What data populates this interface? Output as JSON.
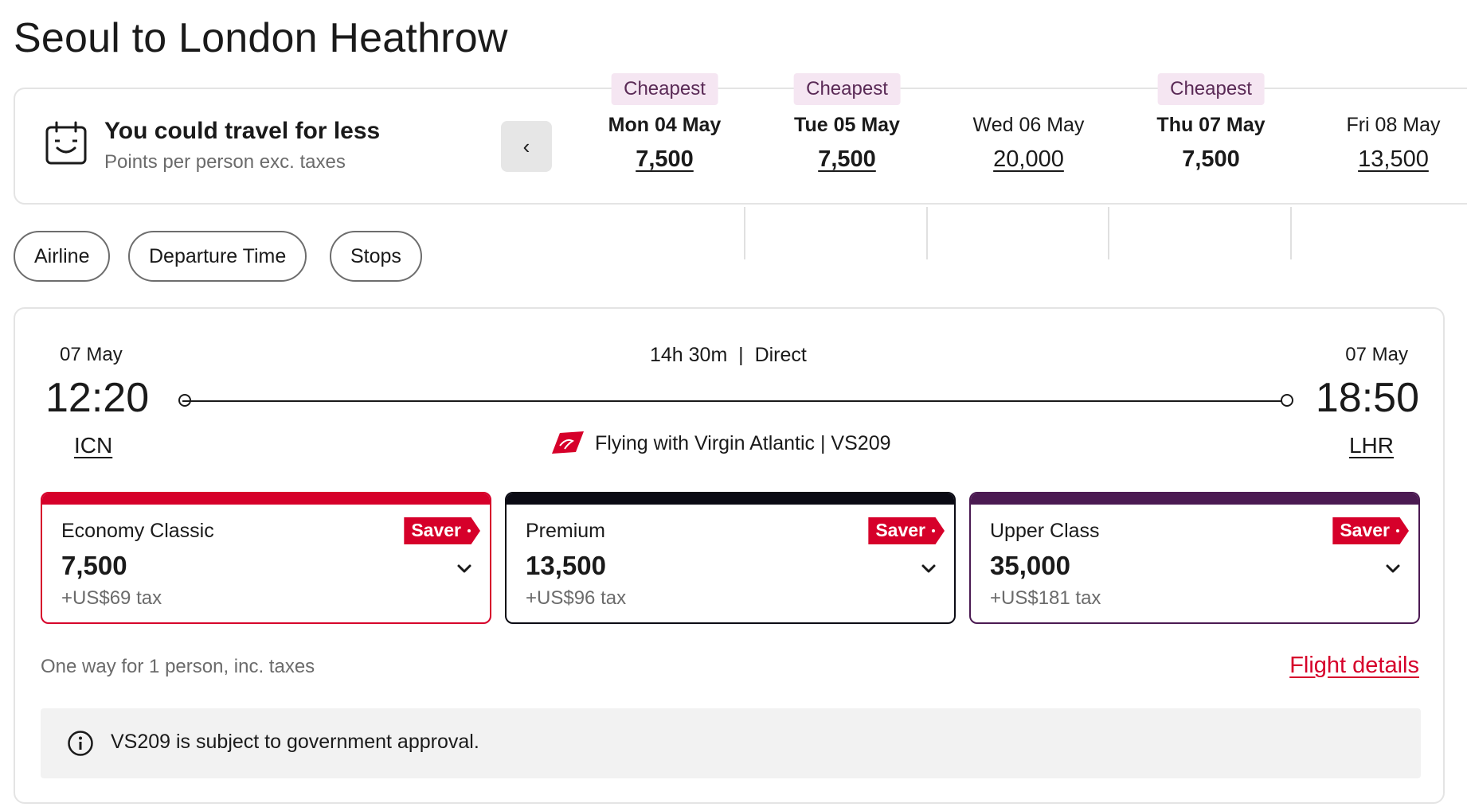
{
  "page": {
    "title": "Seoul to London Heathrow"
  },
  "date_strip": {
    "headline": "You could travel for less",
    "subline": "Points per person exc. taxes",
    "prev_label": "‹",
    "dates": [
      {
        "badge": "Cheapest",
        "label": "Mon 04 May",
        "points": "7,500"
      },
      {
        "badge": "Cheapest",
        "label": "Tue 05 May",
        "points": "7,500"
      },
      {
        "badge": "",
        "label": "Wed 06 May",
        "points": "20,000"
      },
      {
        "badge": "Cheapest",
        "label": "Thu 07 May",
        "points": "7,500",
        "selected": true
      },
      {
        "badge": "",
        "label": "Fri 08 May",
        "points": "13,500"
      }
    ]
  },
  "filters": [
    "Airline",
    "Departure Time",
    "Stops"
  ],
  "flight": {
    "departure": {
      "date": "07 May",
      "time": "12:20",
      "code": "ICN"
    },
    "arrival": {
      "date": "07 May",
      "time": "18:50",
      "code": "LHR"
    },
    "duration": "14h 30m  |  Direct",
    "operator": "Flying with Virgin Atlantic | VS209",
    "fares": [
      {
        "name": "Economy Classic",
        "points": "7,500",
        "tax": "+US$69 tax",
        "badge": "Saver",
        "color": "#d6002a"
      },
      {
        "name": "Premium",
        "points": "13,500",
        "tax": "+US$96 tax",
        "badge": "Saver",
        "color": "#0b0b14"
      },
      {
        "name": "Upper Class",
        "points": "35,000",
        "tax": "+US$181 tax",
        "badge": "Saver",
        "color": "#4b1a52"
      }
    ],
    "footnote": "One way for 1 person, inc. taxes",
    "details_link": "Flight details",
    "notice": "VS209 is subject to government approval."
  },
  "colors": {
    "accent": "#d6002a",
    "badge_bg": "#f5e6f2",
    "badge_text": "#5a2a56"
  }
}
